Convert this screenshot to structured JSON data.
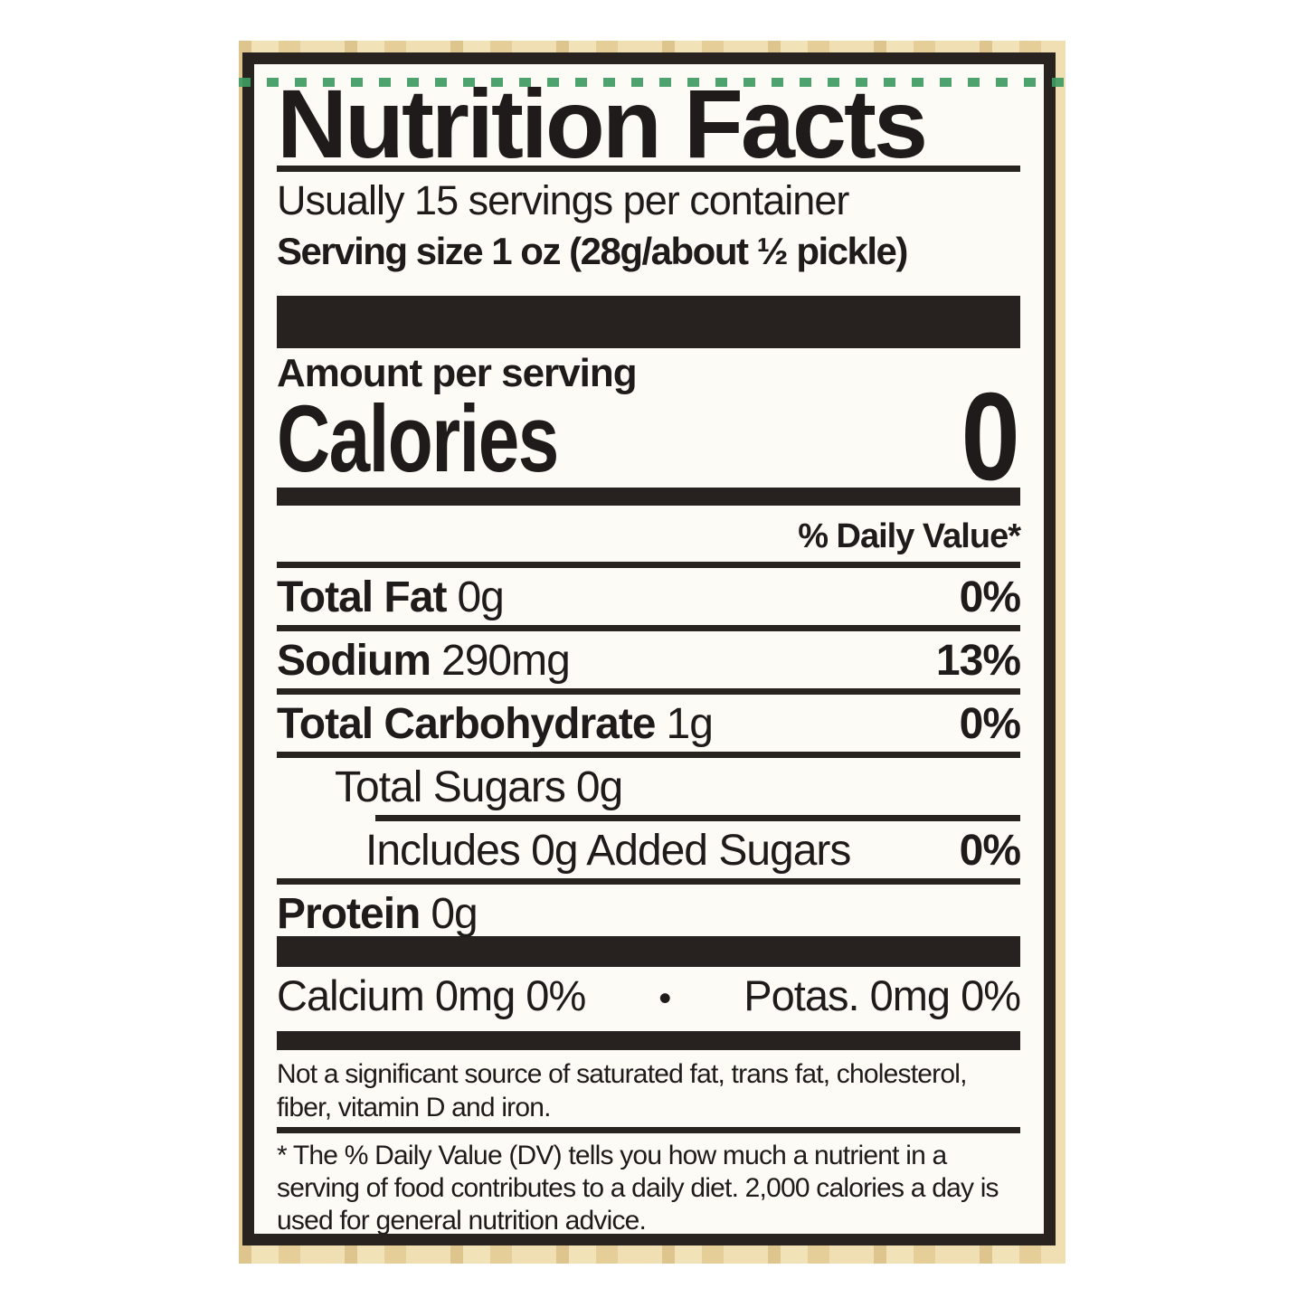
{
  "label": {
    "title": "Nutrition Facts",
    "servings_per_container": "Usually 15 servings per container",
    "serving_size": "Serving size 1 oz (28g/about ½ pickle)",
    "amount_per_serving": "Amount per serving",
    "calories": {
      "label": "Calories",
      "value": "0"
    },
    "daily_value_header": "% Daily Value*",
    "nutrients": [
      {
        "name": "Total Fat",
        "amount": "0g",
        "daily_value": "0%"
      },
      {
        "name": "Sodium",
        "amount": "290mg",
        "daily_value": "13%"
      },
      {
        "name": "Total Carbohydrate",
        "amount": "1g",
        "daily_value": "0%"
      },
      {
        "name": "Total Sugars",
        "amount": "0g",
        "daily_value": ""
      },
      {
        "name": "Includes 0g Added Sugars",
        "amount": "",
        "daily_value": "0%"
      },
      {
        "name": "Protein",
        "amount": "0g",
        "daily_value": ""
      }
    ],
    "minerals": {
      "calcium": "Calcium 0mg 0%",
      "separator": "•",
      "potassium": "Potas. 0mg 0%"
    },
    "footnote_not_significant": "Not a significant source of saturated fat, trans fat, cholesterol, fiber, vitamin D and iron.",
    "footnote_daily_value": "* The % Daily Value (DV) tells you how much a nutrient in a serving of food contributes to a daily diet. 2,000 calories a day is used for general nutrition advice."
  },
  "colors": {
    "label_text": "#1e1b1a",
    "label_background": "#fcfbf6",
    "frame_and_bars": "#29231f",
    "wood_background": "#ecd8a6",
    "cut_line_green": "#3e9b62"
  }
}
